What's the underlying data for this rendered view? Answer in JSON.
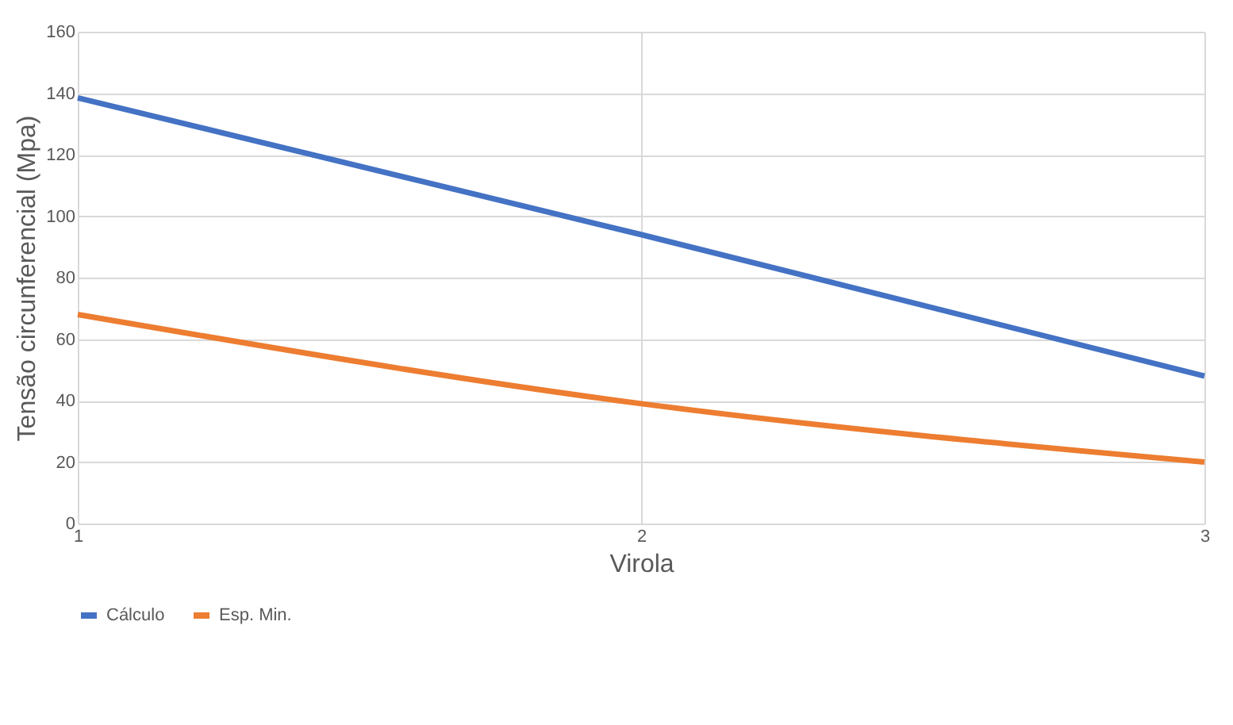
{
  "chart_data": {
    "type": "line",
    "xlabel": "Virola",
    "ylabel": "Tensão circunferencial (Mpa)",
    "x": [
      1,
      2,
      3
    ],
    "series": [
      {
        "name": "Cálculo",
        "color": "#4472c4",
        "values": [
          138.5,
          94,
          48
        ]
      },
      {
        "name": "Esp. Min.",
        "color": "#ed7d31",
        "values": [
          68,
          39,
          20
        ]
      }
    ],
    "xlim": [
      1,
      3
    ],
    "xticks": [
      1,
      2,
      3
    ],
    "ylim": [
      0,
      160
    ],
    "yticks": [
      0,
      20,
      40,
      60,
      80,
      100,
      120,
      140,
      160
    ],
    "grid": true,
    "legend": "bottom",
    "marker": "none",
    "line_style": "solid"
  }
}
